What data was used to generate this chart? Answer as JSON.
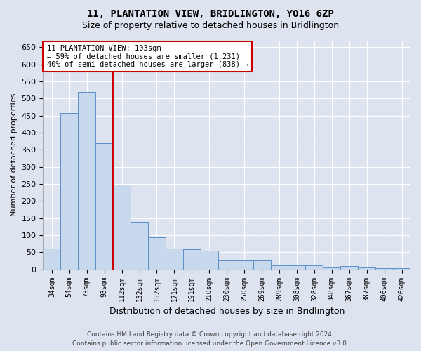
{
  "title": "11, PLANTATION VIEW, BRIDLINGTON, YO16 6ZP",
  "subtitle": "Size of property relative to detached houses in Bridlington",
  "xlabel": "Distribution of detached houses by size in Bridlington",
  "ylabel": "Number of detached properties",
  "categories": [
    "34sqm",
    "54sqm",
    "73sqm",
    "93sqm",
    "112sqm",
    "132sqm",
    "152sqm",
    "171sqm",
    "191sqm",
    "210sqm",
    "230sqm",
    "250sqm",
    "269sqm",
    "289sqm",
    "308sqm",
    "328sqm",
    "348sqm",
    "367sqm",
    "387sqm",
    "406sqm",
    "426sqm"
  ],
  "values": [
    62,
    458,
    520,
    370,
    248,
    140,
    93,
    62,
    58,
    55,
    26,
    26,
    26,
    11,
    12,
    12,
    6,
    10,
    5,
    4,
    4
  ],
  "bar_color": "#c8d9ed",
  "bar_edge_color": "#5b8fc9",
  "vline_x": 3.5,
  "vline_color": "#cc0000",
  "annotation_title": "11 PLANTATION VIEW: 103sqm",
  "annotation_line1": "← 59% of detached houses are smaller (1,231)",
  "annotation_line2": "40% of semi-detached houses are larger (838) →",
  "annotation_box_edgecolor": "#cc0000",
  "ylim": [
    0,
    670
  ],
  "yticks": [
    0,
    50,
    100,
    150,
    200,
    250,
    300,
    350,
    400,
    450,
    500,
    550,
    600,
    650
  ],
  "background_color": "#dde4f0",
  "footer_line1": "Contains HM Land Registry data © Crown copyright and database right 2024.",
  "footer_line2": "Contains public sector information licensed under the Open Government Licence v3.0."
}
